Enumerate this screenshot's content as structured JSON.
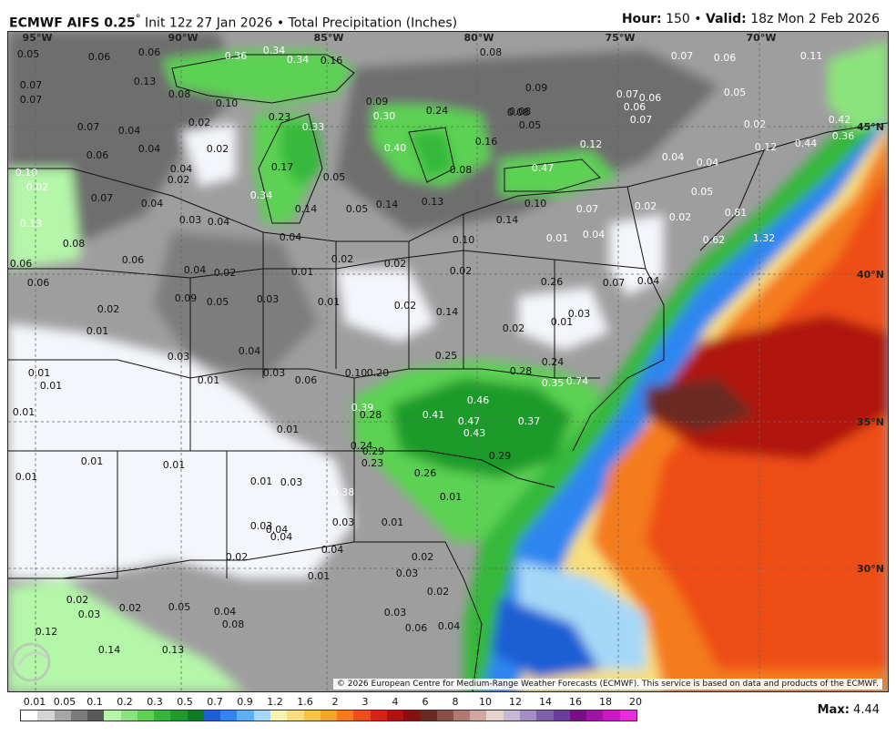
{
  "header": {
    "model": "ECMWF AIFS 0.25",
    "degree": "°",
    "init": "Init 12z 27 Jan 2026",
    "separator": "•",
    "product": "Total Precipitation (Inches)",
    "hour_label": "Hour:",
    "hour_value": "150",
    "valid_label": "Valid:",
    "valid_value": "18z Mon 2 Feb 2026"
  },
  "map": {
    "longitude_labels": [
      "95°W",
      "90°W",
      "85°W",
      "80°W",
      "75°W",
      "70°W"
    ],
    "latitude_labels": [
      "45°N",
      "40°N",
      "35°N",
      "30°N"
    ],
    "precip_values": [
      "0.05",
      "0.06",
      "0.06",
      "0.36",
      "0.34",
      "0.34",
      "0.16",
      "0.08",
      "0.07",
      "0.06",
      "0.11",
      "0.07",
      "0.13",
      "0.08",
      "0.07",
      "0.10",
      "0.09",
      "0.07",
      "0.06",
      "0.05",
      "0.06",
      "0.07",
      "0.08",
      "0.09",
      "0.23",
      "0.30",
      "0.24",
      "0.08",
      "0.05",
      "0.42",
      "0.07",
      "0.04",
      "0.02",
      "0.33",
      "0.16",
      "0.12",
      "0.02",
      "0.36",
      "0.06",
      "0.04",
      "0.40",
      "0.12",
      "0.44",
      "0.02",
      "0.04",
      "0.17",
      "0.47",
      "0.04",
      "0.04",
      "0.10",
      "0.02",
      "0.05",
      "0.08",
      "0.02",
      "0.34",
      "0.14",
      "0.05",
      "0.13",
      "0.10",
      "0.07",
      "0.02",
      "0.05",
      "0.13",
      "0.07",
      "0.04",
      "0.03",
      "0.04",
      "0.14",
      "0.14",
      "0.02",
      "0.81",
      "0.04",
      "0.10",
      "0.01",
      "0.04",
      "0.62",
      "1.32",
      "0.08",
      "0.06",
      "0.06",
      "0.06",
      "0.04",
      "0.02",
      "0.01",
      "0.02",
      "0.02",
      "0.02",
      "0.09",
      "0.05",
      "0.03",
      "0.01",
      "0.02",
      "0.07",
      "0.04",
      "0.14",
      "0.02",
      "0.01",
      "0.03",
      "0.04",
      "0.26",
      "0.02",
      "0.01",
      "0.03",
      "0.25",
      "0.24",
      "0.01",
      "0.01",
      "0.03",
      "0.06",
      "0.10",
      "0.20",
      "0.28",
      "0.35",
      "0.74",
      "0.01",
      "0.01",
      "0.39",
      "0.46",
      "0.28",
      "0.41",
      "0.47",
      "0.37",
      "0.01",
      "0.43",
      "0.24",
      "0.29",
      "0.29",
      "0.01",
      "0.23",
      "0.26",
      "0.01",
      "0.01",
      "0.01",
      "0.03",
      "0.38",
      "0.01",
      "0.03",
      "0.03",
      "0.01",
      "0.04",
      "0.04",
      "0.04",
      "0.02",
      "0.02",
      "0.01",
      "0.03",
      "0.02",
      "0.02",
      "0.03",
      "0.02",
      "0.05",
      "0.04",
      "0.03",
      "0.04",
      "0.08",
      "0.06",
      "0.12",
      "0.14",
      "0.13"
    ]
  },
  "copyright": "© 2026 European Centre for Medium-Range Weather Forecasts (ECMWF). This service is based on data and products of the ECMWF.",
  "legend": {
    "labels": [
      "0.01",
      "0.05",
      "0.1",
      "0.2",
      "0.3",
      "0.5",
      "0.7",
      "0.9",
      "1.2",
      "1.6",
      "2",
      "3",
      "4",
      "6",
      "8",
      "10",
      "12",
      "14",
      "16",
      "18",
      "20"
    ],
    "colors": [
      "#ffffff",
      "#d4d4d4",
      "#a6a6a6",
      "#7c7c7c",
      "#5a5a5a",
      "#b4f7a9",
      "#8be37d",
      "#5cd152",
      "#34b83a",
      "#1e9b2a",
      "#0b7d23",
      "#1e5fd4",
      "#2e86f0",
      "#5cb0f7",
      "#a5d8f8",
      "#f8f3b0",
      "#f8de7c",
      "#f8c448",
      "#f8a32a",
      "#f47c1c",
      "#ee4e18",
      "#d92114",
      "#b0120f",
      "#881010",
      "#6a2a20",
      "#8a5048",
      "#b07a70",
      "#d0a8a0",
      "#e8d2cc",
      "#c8b8d8",
      "#a48cc4",
      "#8060ac",
      "#6c3c9c",
      "#7a0e8a",
      "#a012a8",
      "#c818c8",
      "#e82ce0"
    ],
    "max_label": "Max:",
    "max_value": "4.44"
  }
}
